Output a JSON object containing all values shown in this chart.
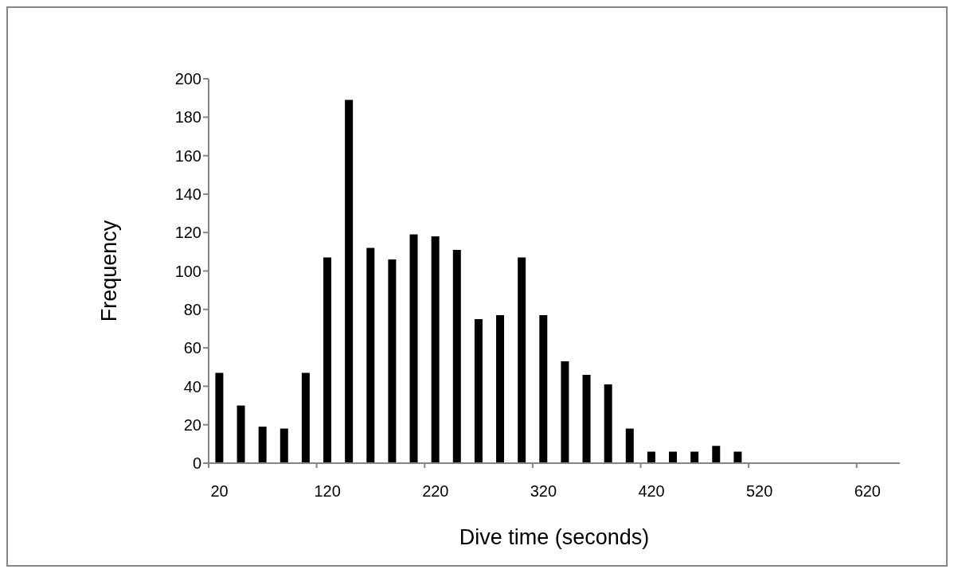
{
  "chart_data": {
    "type": "bar",
    "xlabel": "Dive time (seconds)",
    "ylabel": "Frequency",
    "categories": [
      "20",
      null,
      null,
      null,
      null,
      "120",
      null,
      null,
      null,
      null,
      "220",
      null,
      null,
      null,
      null,
      "320",
      null,
      null,
      null,
      null,
      "420",
      null,
      null,
      null,
      null,
      "520",
      null,
      null,
      null,
      null,
      "620",
      null
    ],
    "values": [
      47,
      30,
      19,
      18,
      47,
      107,
      189,
      112,
      106,
      119,
      118,
      111,
      75,
      77,
      107,
      77,
      53,
      46,
      41,
      18,
      6,
      6,
      6,
      9,
      6,
      0,
      0,
      0,
      0,
      0,
      0,
      0
    ],
    "color": "#000000",
    "ylim": [
      0,
      200
    ],
    "yticks": [
      0,
      20,
      40,
      60,
      80,
      100,
      120,
      140,
      160,
      180,
      200
    ]
  }
}
